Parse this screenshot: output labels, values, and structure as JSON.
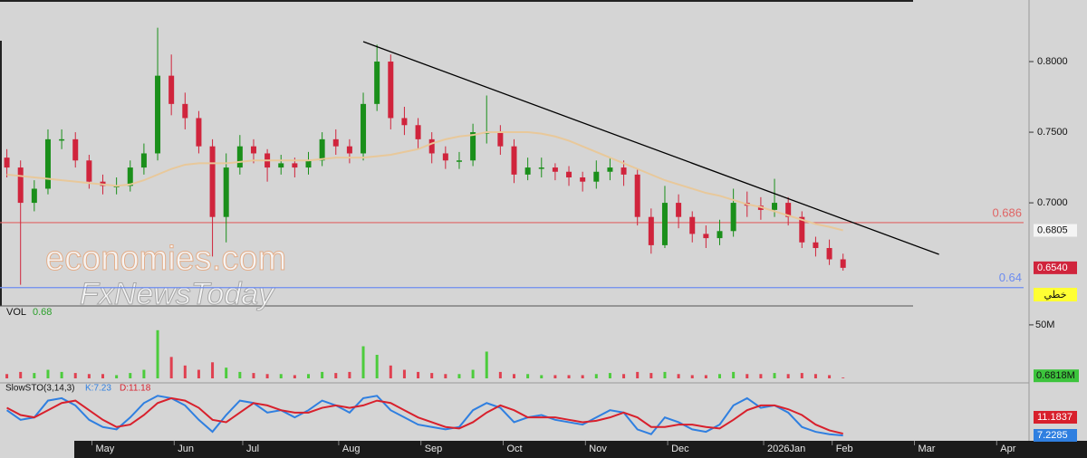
{
  "chart_data": {
    "type": "candlestick",
    "categories": [
      null,
      null,
      null,
      null,
      null,
      null,
      null,
      "May",
      null,
      null,
      null,
      null,
      null,
      "Jun",
      null,
      null,
      null,
      null,
      "Jul",
      null,
      null,
      null,
      null,
      null,
      null,
      "Aug",
      null,
      null,
      null,
      null,
      null,
      "Sep",
      null,
      null,
      null,
      null,
      null,
      "Oct",
      null,
      null,
      null,
      null,
      null,
      "Nov",
      null,
      null,
      null,
      null,
      null,
      "Dec",
      null,
      null,
      null,
      null,
      null,
      null,
      "2026Jan",
      null,
      null,
      null,
      null,
      "Feb",
      null,
      null,
      null,
      null,
      null,
      "Mar",
      null,
      null,
      null,
      null,
      null,
      "Apr",
      null
    ],
    "open": [
      0.732,
      0.725,
      0.7,
      0.71,
      0.745,
      0.745,
      0.73,
      0.715,
      0.712,
      0.712,
      0.725,
      0.735,
      0.79,
      0.77,
      0.76,
      0.74,
      0.69,
      0.725,
      0.74,
      0.735,
      0.725,
      0.728,
      0.725,
      0.73,
      0.745,
      0.74,
      0.735,
      0.77,
      0.8,
      0.76,
      0.755,
      0.745,
      0.735,
      0.73,
      0.73,
      0.75,
      0.75,
      0.74,
      0.72,
      0.725,
      0.725,
      0.722,
      0.718,
      0.715,
      0.722,
      0.725,
      0.72,
      0.69,
      0.67,
      0.7,
      0.69,
      0.678,
      0.675,
      0.68,
      0.7,
      0.698,
      0.695,
      0.7,
      0.69,
      0.672,
      0.668,
      0.66,
      null,
      null,
      null,
      null,
      null,
      null,
      null,
      null,
      null,
      null,
      null,
      null,
      null
    ],
    "high": [
      0.738,
      0.73,
      0.716,
      0.752,
      0.752,
      0.75,
      0.734,
      0.72,
      0.718,
      0.73,
      0.742,
      0.824,
      0.805,
      0.778,
      0.765,
      0.745,
      0.735,
      0.748,
      0.745,
      0.738,
      0.734,
      0.732,
      0.736,
      0.75,
      0.752,
      0.745,
      0.778,
      0.812,
      0.805,
      0.768,
      0.76,
      0.75,
      0.74,
      0.736,
      0.756,
      0.776,
      0.755,
      0.745,
      0.732,
      0.732,
      0.728,
      0.726,
      0.722,
      0.73,
      0.732,
      0.73,
      0.724,
      0.696,
      0.712,
      0.706,
      0.694,
      0.684,
      0.688,
      0.71,
      0.708,
      0.704,
      0.717,
      0.704,
      0.694,
      0.676,
      0.674,
      0.664,
      null,
      null,
      null,
      null,
      null,
      null,
      null,
      null,
      null,
      null,
      null,
      null,
      null
    ],
    "low": [
      0.718,
      0.642,
      0.694,
      0.706,
      0.738,
      0.725,
      0.71,
      0.706,
      0.706,
      0.708,
      0.72,
      0.73,
      0.762,
      0.752,
      0.735,
      0.662,
      0.672,
      0.72,
      0.728,
      0.715,
      0.72,
      0.718,
      0.72,
      0.726,
      0.734,
      0.728,
      0.73,
      0.765,
      0.752,
      0.748,
      0.738,
      0.728,
      0.724,
      0.724,
      0.726,
      0.742,
      0.734,
      0.714,
      0.716,
      0.718,
      0.716,
      0.712,
      0.708,
      0.71,
      0.716,
      0.712,
      0.684,
      0.664,
      0.668,
      0.682,
      0.672,
      0.668,
      0.67,
      0.676,
      0.69,
      0.688,
      0.69,
      0.684,
      0.668,
      0.662,
      0.656,
      0.652,
      null,
      null,
      null,
      null,
      null,
      null,
      null,
      null,
      null,
      null,
      null,
      null,
      null
    ],
    "close": [
      0.725,
      0.7,
      0.71,
      0.745,
      0.745,
      0.73,
      0.715,
      0.712,
      0.712,
      0.725,
      0.735,
      0.79,
      0.77,
      0.76,
      0.74,
      0.69,
      0.725,
      0.74,
      0.735,
      0.725,
      0.728,
      0.725,
      0.73,
      0.745,
      0.74,
      0.735,
      0.77,
      0.8,
      0.76,
      0.755,
      0.745,
      0.735,
      0.73,
      0.73,
      0.75,
      0.75,
      0.74,
      0.72,
      0.725,
      0.725,
      0.722,
      0.718,
      0.715,
      0.722,
      0.725,
      0.72,
      0.69,
      0.67,
      0.7,
      0.69,
      0.678,
      0.675,
      0.68,
      0.7,
      0.698,
      0.695,
      0.7,
      0.69,
      0.672,
      0.668,
      0.66,
      0.654,
      null,
      null,
      null,
      null,
      null,
      null,
      null,
      null,
      null,
      null,
      null,
      null,
      null
    ],
    "ma": [
      0.72,
      0.719,
      0.718,
      0.717,
      0.716,
      0.715,
      0.714,
      0.713,
      0.712,
      0.713,
      0.716,
      0.72,
      0.724,
      0.727,
      0.728,
      0.728,
      0.728,
      0.729,
      0.73,
      0.73,
      0.73,
      0.73,
      0.73,
      0.731,
      0.732,
      0.732,
      0.732,
      0.733,
      0.734,
      0.736,
      0.738,
      0.742,
      0.745,
      0.747,
      0.748,
      0.75,
      0.75,
      0.75,
      0.75,
      0.749,
      0.747,
      0.744,
      0.74,
      0.736,
      0.732,
      0.728,
      0.724,
      0.72,
      0.716,
      0.713,
      0.71,
      0.707,
      0.705,
      0.702,
      0.699,
      0.697,
      0.694,
      0.691,
      0.688,
      0.685,
      0.683,
      0.6805,
      null,
      null,
      null,
      null,
      null,
      null,
      null,
      null,
      null,
      null,
      null,
      null,
      null
    ],
    "up_color": "#1a8f1a",
    "down_color": "#d0243c",
    "ma_color": "#e8c89a",
    "ylim": [
      0.627,
      0.8436
    ],
    "yticks": [
      {
        "value": 0.7,
        "label": "0.7000"
      },
      {
        "value": 0.75,
        "label": "0.7500"
      },
      {
        "value": 0.8,
        "label": "0.8000"
      }
    ],
    "hlines": [
      {
        "value": 0.686,
        "color": "#e06464"
      },
      {
        "value": 0.64,
        "color": "#6c8cf0"
      }
    ],
    "trendline": {
      "from": [
        26,
        0.8141
      ],
      "to": [
        68,
        0.6635
      ],
      "color": "#000000"
    },
    "ma_last": 0.6805,
    "last_price": {
      "value": 0.654,
      "label": "0.6540"
    },
    "style_label": "خطي",
    "watermark": [
      "economies.com",
      "FxNewsToday"
    ],
    "volume": {
      "label": "VOL",
      "current": 0.68,
      "values": [
        4,
        6,
        5,
        8,
        6,
        5,
        4,
        4,
        3,
        5,
        8,
        45,
        20,
        12,
        8,
        15,
        10,
        6,
        5,
        4,
        4,
        3,
        4,
        6,
        5,
        6,
        30,
        22,
        12,
        8,
        6,
        5,
        4,
        4,
        8,
        25,
        6,
        4,
        4,
        3,
        3,
        3,
        3,
        4,
        5,
        4,
        6,
        5,
        6,
        4,
        3,
        3,
        4,
        6,
        4,
        4,
        5,
        4,
        5,
        4,
        3,
        0.6818,
        null,
        null,
        null,
        null,
        null,
        null,
        null,
        null,
        null,
        null,
        null,
        null,
        null
      ],
      "ylim": [
        0,
        66
      ],
      "yticks": [
        {
          "value": 50,
          "label": "50M"
        }
      ],
      "last": {
        "value": 0.6818,
        "label": "0.6818M"
      }
    },
    "stochastic": {
      "title": "SlowSTO(3,14,3)",
      "k_label": "K:7.23",
      "d_label": "D:11.18",
      "ylim": [
        0,
        100
      ],
      "k_color": "#2f7fe0",
      "d_color": "#d8202c",
      "k": [
        60,
        40,
        45,
        80,
        85,
        70,
        40,
        25,
        20,
        45,
        75,
        90,
        85,
        70,
        40,
        15,
        50,
        80,
        75,
        55,
        60,
        45,
        60,
        80,
        70,
        55,
        85,
        90,
        60,
        45,
        30,
        25,
        20,
        25,
        60,
        75,
        65,
        35,
        45,
        50,
        40,
        35,
        30,
        45,
        60,
        55,
        20,
        10,
        45,
        35,
        20,
        15,
        30,
        70,
        85,
        65,
        70,
        55,
        25,
        15,
        10,
        7.2285,
        null,
        null,
        null,
        null,
        null,
        null,
        null,
        null,
        null,
        null,
        null,
        null,
        null
      ],
      "d": [
        65,
        50,
        45,
        60,
        75,
        80,
        60,
        40,
        25,
        30,
        50,
        75,
        85,
        80,
        65,
        40,
        35,
        55,
        75,
        70,
        60,
        55,
        55,
        65,
        70,
        65,
        70,
        80,
        75,
        60,
        45,
        35,
        25,
        22,
        35,
        55,
        70,
        60,
        45,
        45,
        45,
        40,
        35,
        38,
        45,
        55,
        45,
        25,
        25,
        30,
        30,
        25,
        22,
        40,
        60,
        70,
        70,
        62,
        50,
        30,
        18,
        11.1837,
        null,
        null,
        null,
        null,
        null,
        null,
        null,
        null,
        null,
        null,
        null,
        null,
        null
      ],
      "k_last": 7.2285,
      "d_last": 11.1837
    }
  }
}
